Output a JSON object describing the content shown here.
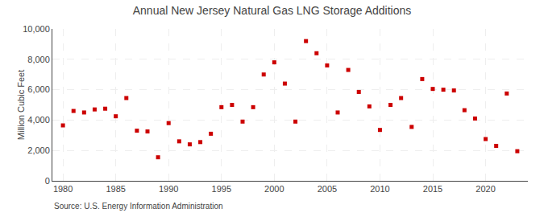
{
  "chart_data": {
    "type": "scatter",
    "title": "Annual New Jersey Natural Gas LNG Storage Additions",
    "ylabel": "Million Cubic Feet",
    "annotations": [
      "Source: U.S. Energy Information Administration"
    ],
    "x": [
      1980,
      1981,
      1982,
      1983,
      1984,
      1985,
      1986,
      1987,
      1988,
      1989,
      1990,
      1991,
      1992,
      1993,
      1994,
      1995,
      1996,
      1997,
      1998,
      1999,
      2000,
      2001,
      2002,
      2003,
      2004,
      2005,
      2006,
      2007,
      2008,
      2009,
      2010,
      2011,
      2012,
      2013,
      2014,
      2015,
      2016,
      2017,
      2018,
      2019,
      2020,
      2021,
      2022,
      2023
    ],
    "values": [
      3650,
      4600,
      4500,
      4700,
      4750,
      4250,
      5450,
      3300,
      3250,
      1550,
      3800,
      2600,
      2400,
      2550,
      3100,
      4850,
      5000,
      3900,
      4850,
      7000,
      7800,
      6400,
      3900,
      9200,
      8400,
      7600,
      4500,
      7300,
      5850,
      4900,
      3350,
      5000,
      5450,
      3550,
      6700,
      6050,
      6000,
      5950,
      4650,
      4100,
      2750,
      2300,
      5750,
      1950
    ],
    "color": "#cc0000",
    "marker": "square",
    "xlim": [
      1979,
      2024
    ],
    "xticks": [
      1980,
      1985,
      1990,
      1995,
      2000,
      2005,
      2010,
      2015,
      2020
    ],
    "ylim": [
      0,
      10000
    ],
    "yticks": [
      0,
      {
        "value": 2000,
        "label": "2,000"
      },
      {
        "value": 4000,
        "label": "4,000"
      },
      {
        "value": 6000,
        "label": "6,000"
      },
      {
        "value": 8000,
        "label": "8,000"
      },
      {
        "value": 10000,
        "label": "10,000"
      }
    ],
    "grid": true
  }
}
